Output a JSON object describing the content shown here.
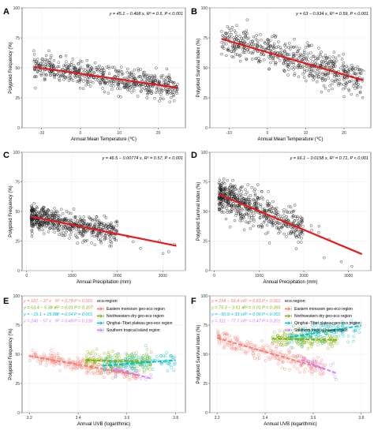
{
  "colors": {
    "points": "#1a1a1a",
    "fit": "#e41a1c",
    "eastern": "#f8766d",
    "northwestern": "#7cae00",
    "qinghai": "#00bfc4",
    "southern": "#c77cff"
  },
  "chart_data": [
    {
      "panel": "A",
      "type": "scatter",
      "xlabel": "Annual Mean Temperature (℃)",
      "ylabel": "Polyploid Frequency (%)",
      "xlim": [
        -15,
        27
      ],
      "ylim": [
        0,
        100
      ],
      "xticks": [
        -10,
        0,
        10,
        20
      ],
      "yticks": [
        0,
        25,
        50,
        75,
        100
      ],
      "equation": "y = 45.1 − 0.468 x, R² = 0.5, P < 0.001",
      "fit": {
        "intercept": 45.1,
        "slope": -0.468,
        "x_range": [
          -12,
          25
        ]
      },
      "scatter": {
        "n": 600,
        "x_range": [
          -12,
          25
        ],
        "spread": 5
      }
    },
    {
      "panel": "B",
      "type": "scatter",
      "xlabel": "Annual Mean Temperature (℃)",
      "ylabel": "Polyploid Survival Index (%)",
      "xlim": [
        -15,
        27
      ],
      "ylim": [
        0,
        100
      ],
      "xticks": [
        -10,
        0,
        10,
        20
      ],
      "yticks": [
        0,
        25,
        50,
        75,
        100
      ],
      "equation": "y = 63 − 0.934 x, R² = 0.59, P < 0.001",
      "fit": {
        "intercept": 63,
        "slope": -0.934,
        "x_range": [
          -12,
          25
        ]
      },
      "scatter": {
        "n": 600,
        "x_range": [
          -12,
          25
        ],
        "spread": 7
      }
    },
    {
      "panel": "C",
      "type": "scatter",
      "xlabel": "Annual Precipitation (mm)",
      "ylabel": "Polyploid Frequency (%)",
      "xlim": [
        -100,
        3500
      ],
      "ylim": [
        0,
        100
      ],
      "xticks": [
        0,
        1000,
        2000,
        3000
      ],
      "yticks": [
        0,
        25,
        50,
        75,
        100
      ],
      "equation": "y = 46.5 − 0.00774 x, R² = 0.57, P < 0.001",
      "fit": {
        "intercept": 46.5,
        "slope": -0.00774,
        "x_range": [
          100,
          3300
        ]
      },
      "scatter": {
        "n": 600,
        "x_range": [
          100,
          2000
        ],
        "spread": 5
      }
    },
    {
      "panel": "D",
      "type": "scatter",
      "xlabel": "Annual Precipitation (mm)",
      "ylabel": "Polyploid Survival Index (%)",
      "xlim": [
        -100,
        3500
      ],
      "ylim": [
        0,
        100
      ],
      "xticks": [
        0,
        1000,
        2000,
        3000
      ],
      "yticks": [
        0,
        25,
        50,
        75,
        100
      ],
      "equation": "y = 66.1 − 0.0158 x, R² = 0.71, P < 0.001",
      "fit": {
        "intercept": 66.1,
        "slope": -0.0158,
        "x_range": [
          100,
          3300
        ]
      },
      "scatter": {
        "n": 600,
        "x_range": [
          100,
          2000
        ],
        "spread": 7
      }
    },
    {
      "panel": "E",
      "type": "scatter",
      "xlabel": "Annual UVB (logarithmic)",
      "ylabel": "Polyploid Frequency (%)",
      "xlim": [
        3.17,
        3.84
      ],
      "ylim": [
        0,
        100
      ],
      "xticks": [
        3.2,
        3.4,
        3.6,
        3.8
      ],
      "yticks": [
        0,
        25,
        50,
        75,
        100
      ],
      "legend_title": "eco.region",
      "series": [
        {
          "name": "Eastern monsoon geo-eco region",
          "equation": "y = 167 − 37 x",
          "r2": "R² = 0.78",
          "p": "P < 0.001",
          "intercept": 167,
          "slope": -37,
          "x_range": [
            3.2,
            3.65
          ],
          "n": 220,
          "spread": 3
        },
        {
          "name": "Northwestern dry geo-eco region",
          "equation": "y = 63.4 − 5.38 x",
          "r2": "R² = 0.01",
          "p": "P = 0.107",
          "intercept": 63.4,
          "slope": -5.38,
          "x_range": [
            3.43,
            3.7
          ],
          "n": 150,
          "spread": 4
        },
        {
          "name": "Qinghai–Tibet plateau geo-eco region",
          "equation": "y = −15.1 + 15.8 x",
          "r2": "R² = 0.04",
          "p": "P = 0.001",
          "intercept": -15.1,
          "slope": 15.8,
          "x_range": [
            3.5,
            3.8
          ],
          "n": 130,
          "spread": 4
        },
        {
          "name": "Southern tropical island region",
          "equation": "y = 240 − 57 x",
          "r2": "R² = 0.48",
          "p": "P = 0.136",
          "intercept": 240,
          "slope": -57,
          "x_range": [
            3.55,
            3.7
          ],
          "n": 15,
          "spread": 2
        }
      ]
    },
    {
      "panel": "F",
      "type": "scatter",
      "xlabel": "Annual UVB (logarithmic)",
      "ylabel": "Polyploid Survival Index (%)",
      "xlim": [
        3.17,
        3.84
      ],
      "ylim": [
        0,
        100
      ],
      "xticks": [
        3.2,
        3.4,
        3.6,
        3.8
      ],
      "yticks": [
        0,
        25,
        50,
        75,
        100
      ],
      "legend_title": "eco.region",
      "series": [
        {
          "name": "Eastern monsoon geo-eco region",
          "equation": "y = 254 − 59.4 x",
          "r2": "R² = 0.81",
          "p": "P < 0.001",
          "intercept": 254,
          "slope": -59.4,
          "x_range": [
            3.2,
            3.65
          ],
          "n": 220,
          "spread": 4
        },
        {
          "name": "Northwestern dry geo-eco region",
          "equation": "y = 75.3 − 3.51 x",
          "r2": "R² = 0.01",
          "p": "P = 0.355",
          "intercept": 75.3,
          "slope": -3.51,
          "x_range": [
            3.43,
            3.7
          ],
          "n": 150,
          "spread": 4
        },
        {
          "name": "Qinghai–Tibet plateau geo-eco region",
          "equation": "y = −50.9 + 33 x",
          "r2": "R² = 0.06",
          "p": "P < 0.001",
          "intercept": -50.9,
          "slope": 33,
          "x_range": [
            3.5,
            3.8
          ],
          "n": 130,
          "spread": 4
        },
        {
          "name": "Southern tropical island region",
          "equation": "y = 321 − 77.7 x",
          "r2": "R² = 0.47",
          "p": "P = 0.201",
          "intercept": 321,
          "slope": -77.7,
          "x_range": [
            3.55,
            3.7
          ],
          "n": 15,
          "spread": 3
        }
      ]
    }
  ]
}
